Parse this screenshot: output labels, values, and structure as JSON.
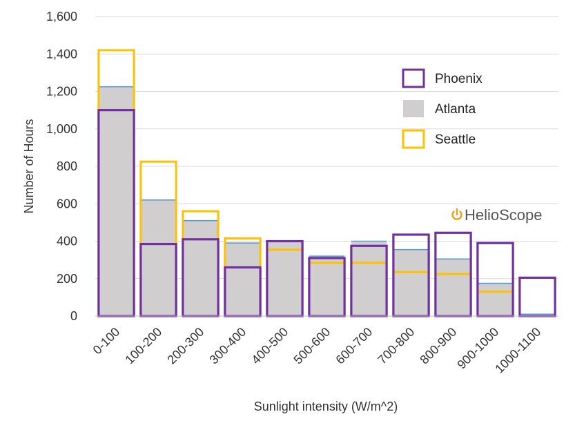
{
  "chart_data": {
    "type": "bar",
    "title": "",
    "xlabel": "Sunlight intensity (W/m^2)",
    "ylabel": "Number of Hours",
    "ylim": [
      0,
      1600
    ],
    "yticks": [
      "0",
      "200",
      "400",
      "600",
      "800",
      "1,000",
      "1,200",
      "1,400",
      "1,600"
    ],
    "ytick_values": [
      0,
      200,
      400,
      600,
      800,
      1000,
      1200,
      1400,
      1600
    ],
    "grid": true,
    "legend_position": "top-right",
    "categories": [
      "0-100",
      "100-200",
      "200-300",
      "300-400",
      "400-500",
      "500-600",
      "600-700",
      "700-800",
      "800-900",
      "900-1000",
      "1000-1100"
    ],
    "series": [
      {
        "name": "Phoenix",
        "style": "outline",
        "color": "#7030A0",
        "values": [
          1100,
          385,
          410,
          260,
          400,
          310,
          375,
          435,
          445,
          390,
          205
        ]
      },
      {
        "name": "Atlanta",
        "style": "filled",
        "color": "#D0CECE",
        "edge_color": "#5B9BD5",
        "values": [
          1225,
          620,
          510,
          390,
          400,
          320,
          400,
          355,
          305,
          175,
          10
        ]
      },
      {
        "name": "Seattle",
        "style": "outline",
        "color": "#FFC000",
        "values": [
          1420,
          825,
          560,
          415,
          355,
          285,
          285,
          235,
          225,
          130,
          0
        ]
      }
    ]
  },
  "brand": {
    "name": "HelioScope",
    "icon": "power-icon",
    "color": "#F39C12"
  }
}
